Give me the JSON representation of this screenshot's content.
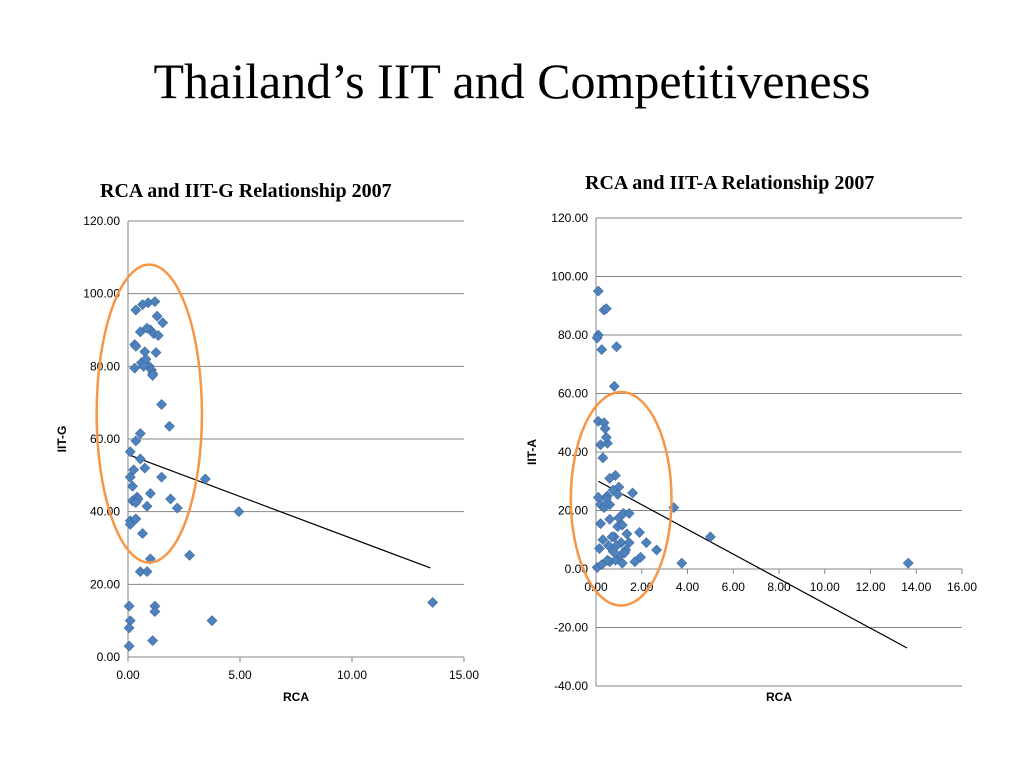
{
  "title": "Thailand’s IIT and Competitiveness",
  "accent_colors": {
    "marker": "#4f81bd",
    "ellipse": "#f79646",
    "trendline": "#000000",
    "gridline": "#868686"
  },
  "chart_data": [
    {
      "type": "scatter",
      "title": "RCA and IIT-G Relationship 2007",
      "xlabel": "RCA",
      "ylabel": "IIT-G",
      "xlim": [
        0,
        15
      ],
      "ylim": [
        0,
        120
      ],
      "xticks": [
        "0.00",
        "5.00",
        "10.00",
        "15.00"
      ],
      "yticks": [
        "0.00",
        "20.00",
        "40.00",
        "60.00",
        "80.00",
        "100.00",
        "120.00"
      ],
      "grid": "horizontal",
      "trendline": {
        "x": [
          0.1,
          13.5
        ],
        "y": [
          55.5,
          24.5
        ]
      },
      "highlight_ellipse": {
        "center": [
          0.95,
          67
        ],
        "rx": 2.35,
        "ry": 41
      },
      "x": [
        0.35,
        0.9,
        0.65,
        1.2,
        1.0,
        1.55,
        1.3,
        0.55,
        0.85,
        1.15,
        1.35,
        0.3,
        0.75,
        0.35,
        0.6,
        0.95,
        1.05,
        1.25,
        0.3,
        0.8,
        0.7,
        1.1,
        1.1,
        1.5,
        1.85,
        0.55,
        0.35,
        0.1,
        0.25,
        0.55,
        0.75,
        0.1,
        1.0,
        0.2,
        0.4,
        0.2,
        0.45,
        0.35,
        0.85,
        1.9,
        2.2,
        0.1,
        0.1,
        0.35,
        0.65,
        1.5,
        1.0,
        0.55,
        0.85,
        2.75,
        3.45,
        4.95,
        3.75,
        1.2,
        1.2,
        0.05,
        0.1,
        0.05,
        0.05,
        1.1,
        13.6
      ],
      "y": [
        95.5,
        97.5,
        97,
        97.8,
        90,
        92,
        93.8,
        89.5,
        90.5,
        89,
        88.5,
        86,
        84,
        85.5,
        81,
        80,
        79,
        83.8,
        79.5,
        82,
        80,
        78,
        77.5,
        69.5,
        63.5,
        61.5,
        59.5,
        56.5,
        51.5,
        54.5,
        52,
        49.5,
        45,
        47,
        44,
        43,
        43.5,
        42.5,
        41.5,
        43.5,
        41,
        37.5,
        36.5,
        38,
        34,
        49.5,
        27,
        23.5,
        23.5,
        28,
        49,
        40,
        10,
        14,
        12.5,
        14,
        10,
        8,
        3,
        4.5,
        15
      ]
    },
    {
      "type": "scatter",
      "title": "RCA and IIT-A Relationship 2007",
      "xlabel": "RCA",
      "ylabel": "IIT-A",
      "xlim": [
        0,
        16
      ],
      "ylim": [
        -40,
        120
      ],
      "xticks": [
        "0.00",
        "2.00",
        "4.00",
        "6.00",
        "8.00",
        "10.00",
        "12.00",
        "14.00",
        "16.00"
      ],
      "yticks": [
        "-40.00",
        "-20.00",
        "0.00",
        "20.00",
        "40.00",
        "60.00",
        "80.00",
        "100.00",
        "120.00"
      ],
      "grid": "horizontal",
      "trendline": {
        "x": [
          0.1,
          13.6
        ],
        "y": [
          30,
          -27
        ]
      },
      "highlight_ellipse": {
        "center": [
          1.1,
          24
        ],
        "rx": 2.2,
        "ry": 36.5
      },
      "x": [
        0.1,
        0.35,
        0.45,
        0.1,
        0.05,
        0.25,
        0.9,
        0.8,
        0.1,
        0.35,
        0.4,
        0.2,
        0.5,
        0.45,
        0.3,
        0.85,
        0.6,
        1.0,
        0.75,
        0.5,
        0.95,
        1.6,
        0.45,
        0.2,
        0.1,
        0.35,
        0.6,
        3.4,
        0.2,
        0.6,
        1.0,
        1.2,
        1.45,
        0.95,
        1.15,
        0.8,
        1.35,
        1.9,
        0.3,
        0.7,
        1.1,
        2.2,
        1.45,
        0.15,
        0.55,
        0.9,
        1.3,
        0.75,
        2.65,
        1.95,
        1.05,
        1.25,
        0.6,
        0.85,
        0.05,
        1.15,
        0.5,
        1.7,
        0.25,
        3.75,
        5.0,
        13.65
      ],
      "y": [
        95,
        88.5,
        89,
        80,
        79,
        75,
        76,
        62.5,
        50.5,
        50,
        48,
        42.5,
        43,
        45,
        38,
        32,
        31,
        28,
        27,
        25,
        25.5,
        26,
        24,
        22,
        24.5,
        21,
        22,
        21,
        15.5,
        17,
        17.5,
        19,
        19,
        14.5,
        15,
        11,
        12,
        12.5,
        10,
        11,
        9,
        9,
        9,
        7,
        8,
        8,
        6.5,
        6,
        6.5,
        4,
        4.5,
        5.5,
        2.5,
        3,
        0.5,
        2,
        3,
        2.5,
        1.5,
        2,
        11,
        2
      ]
    }
  ]
}
